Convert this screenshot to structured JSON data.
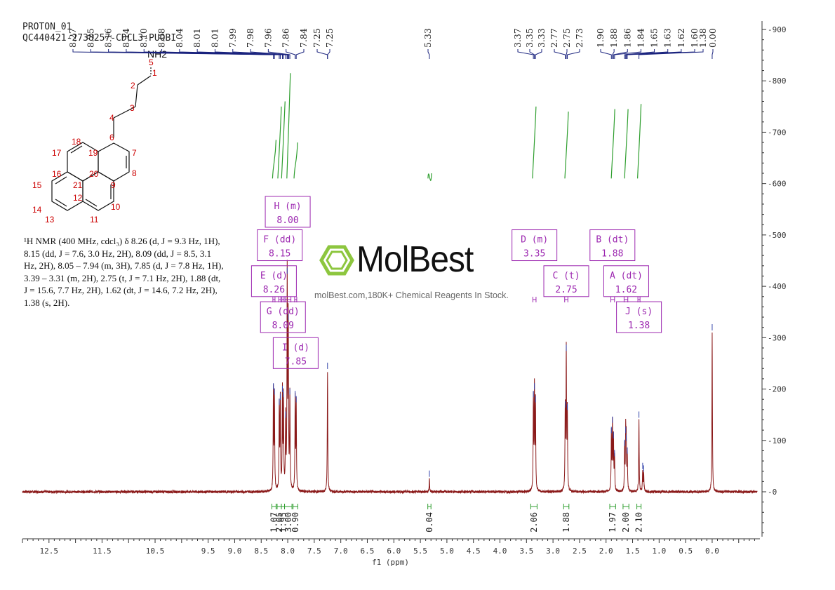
{
  "header": {
    "line1": "PROTON_01",
    "line2": "QC440421-2738257-CDCL3-PUOBI"
  },
  "description": {
    "lines": [
      "¹H NMR (400 MHz, cdcl₃) δ 8.26 (d, J = 9.3 Hz, 1H),",
      "8.15 (dd, J = 7.6, 3.0 Hz, 2H), 8.09 (dd, J = 8.5, 3.1",
      "Hz, 2H), 8.05 – 7.94 (m, 3H), 7.85 (d, J = 7.8 Hz, 1H),",
      "3.39 – 3.31 (m, 2H), 2.75 (t, J = 7.1 Hz, 2H), 1.88 (dt,",
      "J = 15.6, 7.7 Hz, 2H), 1.62 (dt, J = 14.6, 7.2 Hz, 2H),",
      "1.38 (s, 2H)."
    ]
  },
  "watermark": {
    "name": "MolBest",
    "tagline": "molBest.com,180K+ Chemical Reagents In Stock.",
    "color": "#8dc63f"
  },
  "structure": {
    "amine_label": "NH2",
    "atom_numbers": [
      "1",
      "2",
      "3",
      "4",
      "5",
      "6",
      "7",
      "8",
      "9",
      "10",
      "11",
      "12",
      "13",
      "14",
      "15",
      "16",
      "17",
      "18",
      "19",
      "20",
      "21"
    ]
  },
  "colors": {
    "spectrum": "#8b1a1a",
    "integral": "#2e9e2e",
    "peak_label": "#1a237e",
    "multiplet_box": "#9c27b0",
    "atom_number": "#cc0000"
  },
  "chart_data": {
    "type": "line",
    "xlabel": "f1 (ppm)",
    "xlim": [
      13.0,
      -0.9
    ],
    "x_reversed": true,
    "x_ticks": [
      "12.5",
      "11.5",
      "10.5",
      "9.5",
      "9.0",
      "8.5",
      "8.0",
      "7.5",
      "7.0",
      "6.5",
      "6.0",
      "5.5",
      "5.0",
      "4.5",
      "4.0",
      "3.5",
      "3.0",
      "2.5",
      "2.0",
      "1.5",
      "1.0",
      "0.5",
      "0.0"
    ],
    "x_tick_values": [
      12.5,
      11.5,
      10.5,
      9.5,
      9.0,
      8.5,
      8.0,
      7.5,
      7.0,
      6.5,
      6.0,
      5.5,
      5.0,
      4.5,
      4.0,
      3.5,
      3.0,
      2.5,
      2.0,
      1.5,
      1.0,
      0.5,
      0.0
    ],
    "ylim": [
      -90,
      920
    ],
    "y_ticks": [
      900,
      800,
      700,
      600,
      500,
      400,
      300,
      200,
      100,
      0
    ],
    "y_tick_labels": [
      "900",
      "800",
      "700",
      "600",
      "500",
      "400",
      "300",
      "200",
      "100",
      "0"
    ],
    "peaks": [
      {
        "x": 8.27,
        "y": 195
      },
      {
        "x": 8.25,
        "y": 185
      },
      {
        "x": 8.16,
        "y": 165
      },
      {
        "x": 8.14,
        "y": 175
      },
      {
        "x": 8.1,
        "y": 190
      },
      {
        "x": 8.08,
        "y": 180
      },
      {
        "x": 8.04,
        "y": 140
      },
      {
        "x": 8.01,
        "y": 420
      },
      {
        "x": 7.99,
        "y": 330
      },
      {
        "x": 7.96,
        "y": 185
      },
      {
        "x": 7.86,
        "y": 180
      },
      {
        "x": 7.84,
        "y": 170
      },
      {
        "x": 7.25,
        "y": 235
      },
      {
        "x": 5.33,
        "y": 25
      },
      {
        "x": 3.37,
        "y": 180
      },
      {
        "x": 3.35,
        "y": 195
      },
      {
        "x": 3.33,
        "y": 170
      },
      {
        "x": 2.77,
        "y": 160
      },
      {
        "x": 2.75,
        "y": 270
      },
      {
        "x": 2.73,
        "y": 155
      },
      {
        "x": 1.9,
        "y": 110
      },
      {
        "x": 1.88,
        "y": 130
      },
      {
        "x": 1.86,
        "y": 100
      },
      {
        "x": 1.84,
        "y": 65
      },
      {
        "x": 1.65,
        "y": 85
      },
      {
        "x": 1.63,
        "y": 110
      },
      {
        "x": 1.62,
        "y": 95
      },
      {
        "x": 1.6,
        "y": 70
      },
      {
        "x": 1.38,
        "y": 140
      },
      {
        "x": 1.31,
        "y": 40
      },
      {
        "x": 1.29,
        "y": 35
      },
      {
        "x": 0.0,
        "y": 310
      }
    ],
    "peak_labels": [
      "8.27",
      "8.25",
      "8.16",
      "8.14",
      "8.10",
      "8.08",
      "8.04",
      "8.01",
      "8.01",
      "7.99",
      "7.98",
      "7.96",
      "7.86",
      "7.84",
      "7.25",
      "7.25",
      "5.33",
      "3.37",
      "3.35",
      "3.33",
      "2.77",
      "2.75",
      "2.73",
      "1.90",
      "1.88",
      "1.86",
      "1.84",
      "1.65",
      "1.63",
      "1.62",
      "1.60",
      "1.38",
      "0.00"
    ],
    "peak_label_positions": [
      8.27,
      8.25,
      8.16,
      8.14,
      8.1,
      8.08,
      8.04,
      8.01,
      8.01,
      7.99,
      7.98,
      7.96,
      7.86,
      7.84,
      7.25,
      7.25,
      5.33,
      3.37,
      3.35,
      3.33,
      2.77,
      2.75,
      2.73,
      1.9,
      1.88,
      1.86,
      1.84,
      1.65,
      1.63,
      1.62,
      1.6,
      1.38,
      0.0
    ],
    "integrals": [
      {
        "from": 8.3,
        "to": 8.22,
        "value": "1.07",
        "curve_top": 685
      },
      {
        "from": 8.2,
        "to": 8.12,
        "value": "2.05",
        "curve_top": 750
      },
      {
        "from": 8.12,
        "to": 8.06,
        "value": "1.95",
        "curve_top": 760
      },
      {
        "from": 8.06,
        "to": 7.92,
        "value": "3.00",
        "curve_top": 815
      },
      {
        "from": 7.9,
        "to": 7.81,
        "value": "0.90",
        "curve_top": 680
      },
      {
        "from": 5.36,
        "to": 5.3,
        "value": "0.04",
        "curve_top": 620
      },
      {
        "from": 3.42,
        "to": 3.3,
        "value": "2.06",
        "curve_top": 750
      },
      {
        "from": 2.8,
        "to": 2.7,
        "value": "1.88",
        "curve_top": 740
      },
      {
        "from": 1.93,
        "to": 1.82,
        "value": "1.97",
        "curve_top": 745
      },
      {
        "from": 1.68,
        "to": 1.57,
        "value": "2.00",
        "curve_top": 745
      },
      {
        "from": 1.42,
        "to": 1.34,
        "value": "2.10",
        "curve_top": 755
      }
    ],
    "multiplets": [
      {
        "label": "H (m)",
        "shift": "8.00",
        "x": 8.0,
        "y": 545,
        "bracket": [
          8.05,
          7.94
        ]
      },
      {
        "label": "F (dd)",
        "shift": "8.15",
        "x": 8.15,
        "y": 480,
        "bracket": [
          8.17,
          8.13
        ]
      },
      {
        "label": "E (d)",
        "shift": "8.26",
        "x": 8.26,
        "y": 410,
        "bracket": [
          8.28,
          8.24
        ]
      },
      {
        "label": "G (dd)",
        "shift": "8.09",
        "x": 8.09,
        "y": 340,
        "bracket": [
          8.11,
          8.07
        ]
      },
      {
        "label": "I (d)",
        "shift": "7.85",
        "x": 7.85,
        "y": 270,
        "bracket": [
          7.87,
          7.83
        ]
      },
      {
        "label": "D (m)",
        "shift": "3.35",
        "x": 3.35,
        "y": 480,
        "bracket": [
          3.38,
          3.32
        ]
      },
      {
        "label": "C (t)",
        "shift": "2.75",
        "x": 2.75,
        "y": 410,
        "bracket": [
          2.78,
          2.72
        ]
      },
      {
        "label": "B (dt)",
        "shift": "1.88",
        "x": 1.88,
        "y": 480,
        "bracket": [
          1.91,
          1.84
        ]
      },
      {
        "label": "A (dt)",
        "shift": "1.62",
        "x": 1.62,
        "y": 410,
        "bracket": [
          1.66,
          1.59
        ]
      },
      {
        "label": "J (s)",
        "shift": "1.38",
        "x": 1.38,
        "y": 340,
        "bracket": [
          1.4,
          1.36
        ]
      }
    ]
  }
}
